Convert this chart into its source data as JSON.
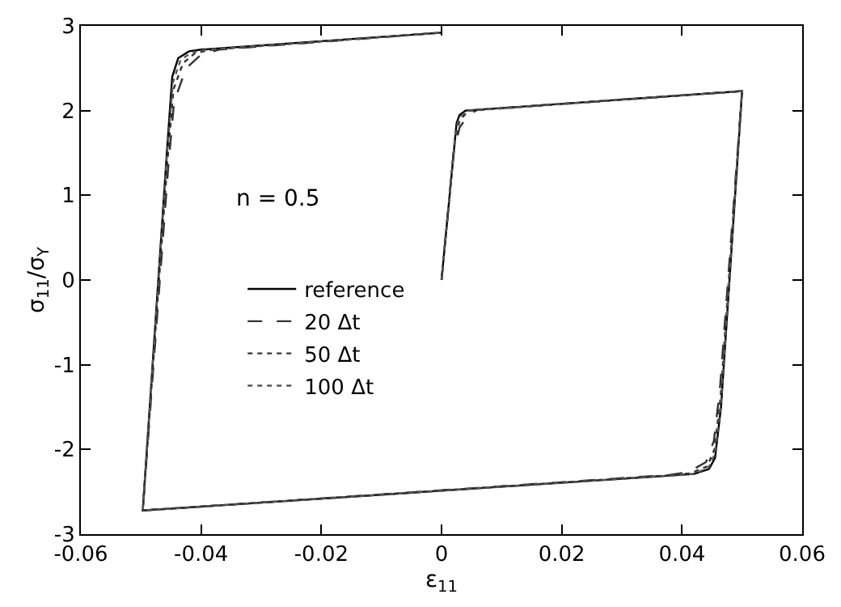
{
  "chart_data": {
    "type": "line",
    "xlabel": "ε$_{11}$",
    "ylabel": "σ$_{11}$/σ$_{Y}$",
    "xlim": [
      -0.06,
      0.06
    ],
    "xticks": [
      -0.06,
      -0.04,
      -0.02,
      0,
      0.02,
      0.04,
      0.06
    ],
    "ylim": [
      -3,
      3
    ],
    "yticks": [
      -3,
      -2,
      -1,
      0,
      1,
      2,
      3
    ],
    "legend": "left",
    "marker": "none",
    "annotations": [
      "n = 0.5"
    ],
    "series": [
      {
        "name": "reference",
        "color": "#000000",
        "line_style": "solid",
        "x": [
          0,
          0.0025,
          0.003,
          0.004,
          0.05,
          0.0465,
          0.0455,
          0.0445,
          0.042,
          -0.0497,
          -0.0457,
          -0.0448,
          -0.0438,
          -0.042,
          -0.04,
          0
        ],
        "values": [
          0,
          1.85,
          1.95,
          2.0,
          2.23,
          -1.5,
          -2.1,
          -2.23,
          -2.29,
          -2.72,
          1.5,
          2.4,
          2.62,
          2.7,
          2.72,
          2.92
        ]
      },
      {
        "name": "20 Δt",
        "color": "#333333",
        "line_style": "dashed",
        "x": [
          0,
          0.002,
          0.003,
          0.0045,
          0.006,
          0.05,
          0.0463,
          0.0453,
          0.044,
          0.041,
          0.038,
          -0.0497,
          -0.0455,
          -0.0445,
          -0.0425,
          -0.04,
          -0.037,
          0
        ],
        "values": [
          0,
          1.5,
          1.8,
          1.95,
          2.01,
          2.23,
          -1.3,
          -1.9,
          -2.15,
          -2.27,
          -2.3,
          -2.72,
          1.3,
          2.1,
          2.5,
          2.66,
          2.72,
          2.92
        ]
      },
      {
        "name": "50 Δt",
        "color": "#333333",
        "line_style": "dashed",
        "x": [
          0,
          0.0022,
          0.003,
          0.0042,
          0.005,
          0.05,
          0.0464,
          0.0454,
          0.0442,
          0.0415,
          0.039,
          -0.0497,
          -0.0456,
          -0.0446,
          -0.043,
          -0.041,
          -0.038,
          0
        ],
        "values": [
          0,
          1.65,
          1.88,
          1.98,
          2.0,
          2.23,
          -1.4,
          -2.0,
          -2.2,
          -2.28,
          -2.3,
          -2.72,
          1.4,
          2.25,
          2.56,
          2.68,
          2.72,
          2.92
        ]
      },
      {
        "name": "100 Δt",
        "color": "#555555",
        "line_style": "dotted",
        "x": [
          0,
          0.0024,
          0.003,
          0.004,
          0.0045,
          0.05,
          0.0465,
          0.0455,
          0.0444,
          0.0418,
          0.04,
          -0.0497,
          -0.0457,
          -0.0447,
          -0.0434,
          -0.0415,
          -0.039,
          0
        ],
        "values": [
          0,
          1.78,
          1.92,
          1.99,
          2.0,
          2.23,
          -1.45,
          -2.05,
          -2.22,
          -2.29,
          -2.3,
          -2.72,
          1.45,
          2.33,
          2.6,
          2.69,
          2.72,
          2.92
        ]
      }
    ]
  }
}
